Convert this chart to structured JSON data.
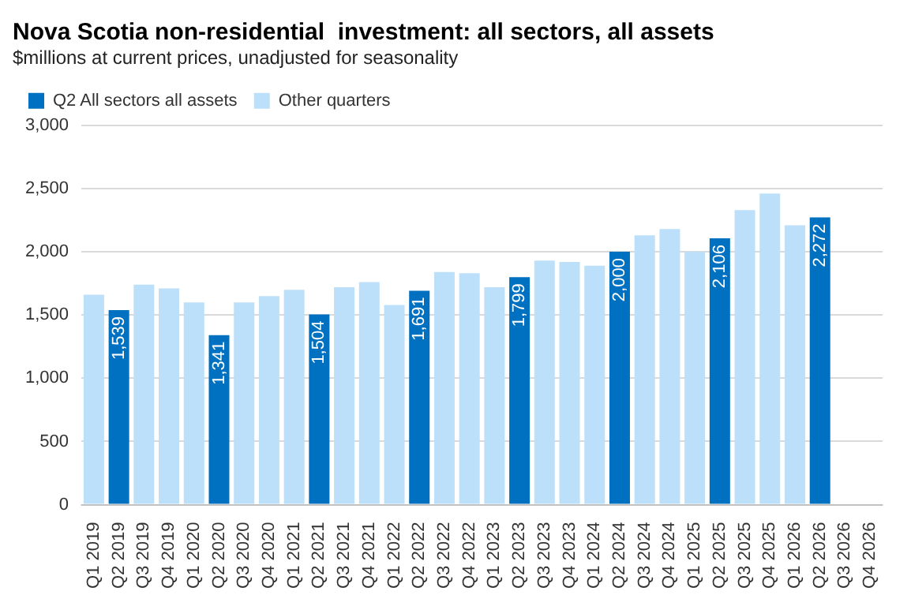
{
  "chart_data": {
    "type": "bar",
    "title": "Nova Scotia non-residential  investment: all sectors, all assets",
    "subtitle": "$millions at current prices, unadjusted for seasonality",
    "categories": [
      "Q1 2019",
      "Q2 2019",
      "Q3 2019",
      "Q4 2019",
      "Q1 2020",
      "Q2 2020",
      "Q3 2020",
      "Q4 2020",
      "Q1 2021",
      "Q2 2021",
      "Q3 2021",
      "Q4 2021",
      "Q1 2022",
      "Q2 2022",
      "Q3 2022",
      "Q4 2022",
      "Q1 2023",
      "Q2 2023",
      "Q3 2023",
      "Q4 2023",
      "Q1 2024",
      "Q2 2024",
      "Q3 2024",
      "Q4 2024",
      "Q1 2025",
      "Q2 2025",
      "Q3 2025",
      "Q4 2025",
      "Q1 2026",
      "Q2 2026",
      "Q3 2026",
      "Q4 2026"
    ],
    "series": [
      {
        "name": "Q2 All sectors all assets",
        "color": "#0070c0",
        "values": [
          null,
          1539,
          null,
          null,
          null,
          1341,
          null,
          null,
          null,
          1504,
          null,
          null,
          null,
          1691,
          null,
          null,
          null,
          1799,
          null,
          null,
          null,
          2000,
          null,
          null,
          null,
          2106,
          null,
          null,
          null,
          2272,
          null,
          null
        ],
        "value_labels": [
          null,
          "1,539",
          null,
          null,
          null,
          "1,341",
          null,
          null,
          null,
          "1,504",
          null,
          null,
          null,
          "1,691",
          null,
          null,
          null,
          "1,799",
          null,
          null,
          null,
          "2,000",
          null,
          null,
          null,
          "2,106",
          null,
          null,
          null,
          "2,272",
          null,
          null
        ]
      },
      {
        "name": "Other quarters",
        "color": "#bde0fa",
        "values": [
          1660,
          null,
          1740,
          1710,
          1600,
          null,
          1600,
          1650,
          1700,
          null,
          1720,
          1760,
          1580,
          null,
          1840,
          1830,
          1720,
          null,
          1930,
          1920,
          1890,
          null,
          2130,
          2180,
          2000,
          null,
          2330,
          2460,
          2210,
          null,
          null,
          null
        ]
      }
    ],
    "ylim": [
      0,
      3000
    ],
    "yticks": [
      {
        "value": 0,
        "label": "0"
      },
      {
        "value": 500,
        "label": "500"
      },
      {
        "value": 1000,
        "label": "1,000"
      },
      {
        "value": 1500,
        "label": "1,500"
      },
      {
        "value": 2000,
        "label": "2,000"
      },
      {
        "value": 2500,
        "label": "2,500"
      },
      {
        "value": 3000,
        "label": "3,000"
      }
    ],
    "grid": "y",
    "legend": "top left"
  }
}
